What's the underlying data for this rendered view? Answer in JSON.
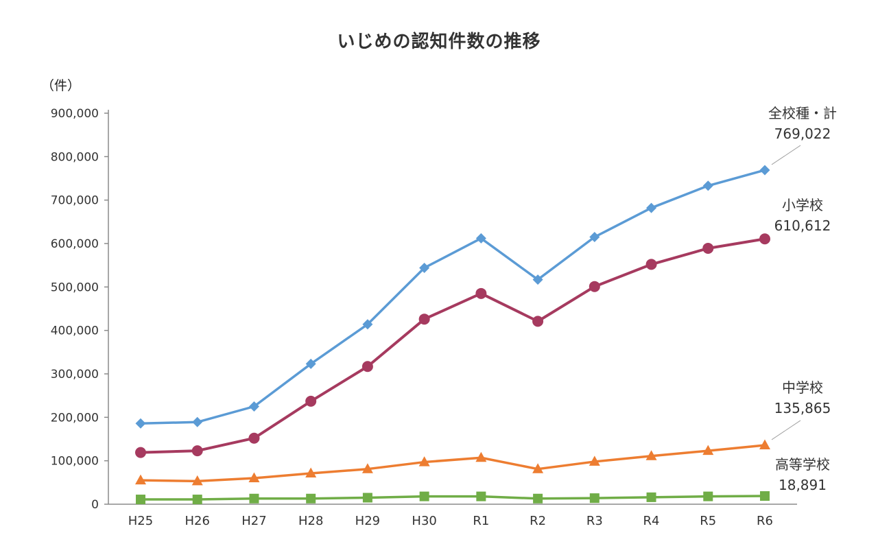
{
  "page": {
    "title": "いじめの認知件数の推移",
    "y_unit_label": "（件）"
  },
  "chart_data": {
    "type": "line",
    "title": "いじめの認知件数の推移",
    "ylabel": "（件）",
    "xlabel": "",
    "categories": [
      "H25",
      "H26",
      "H27",
      "H28",
      "H29",
      "H30",
      "R1",
      "R2",
      "R3",
      "R4",
      "R5",
      "R6"
    ],
    "ylim": [
      0,
      900000
    ],
    "ytick_step": 100000,
    "grid": false,
    "legend_position": "right-annotations",
    "series": [
      {
        "name": "全校種・計",
        "color": "#5B9BD5",
        "marker": "diamond",
        "leader": true,
        "values": [
          186000,
          189000,
          225000,
          323000,
          414000,
          544000,
          612000,
          517000,
          615000,
          682000,
          733000,
          769022
        ],
        "end_label": "769,022"
      },
      {
        "name": "小学校",
        "color": "#A63A5F",
        "marker": "circle",
        "leader": false,
        "values": [
          119000,
          123000,
          152000,
          237000,
          317000,
          426000,
          485000,
          421000,
          501000,
          552000,
          589000,
          610612
        ],
        "end_label": "610,612"
      },
      {
        "name": "中学校",
        "color": "#ED7D31",
        "marker": "triangle",
        "leader": true,
        "values": [
          55000,
          53000,
          60000,
          71000,
          81000,
          97000,
          107000,
          81000,
          98000,
          111000,
          123000,
          135865
        ],
        "end_label": "135,865"
      },
      {
        "name": "高等学校",
        "color": "#70AD47",
        "marker": "square",
        "leader": false,
        "values": [
          11000,
          11000,
          13000,
          13000,
          15000,
          18000,
          18000,
          13000,
          14000,
          16000,
          18000,
          18891
        ],
        "end_label": "18,891"
      }
    ]
  },
  "annotations": [
    {
      "label": "全校種・計",
      "value": "769,022"
    },
    {
      "label": "小学校",
      "value": "610,612"
    },
    {
      "label": "中学校",
      "value": "135,865"
    },
    {
      "label": "高等学校",
      "value": "18,891"
    }
  ]
}
